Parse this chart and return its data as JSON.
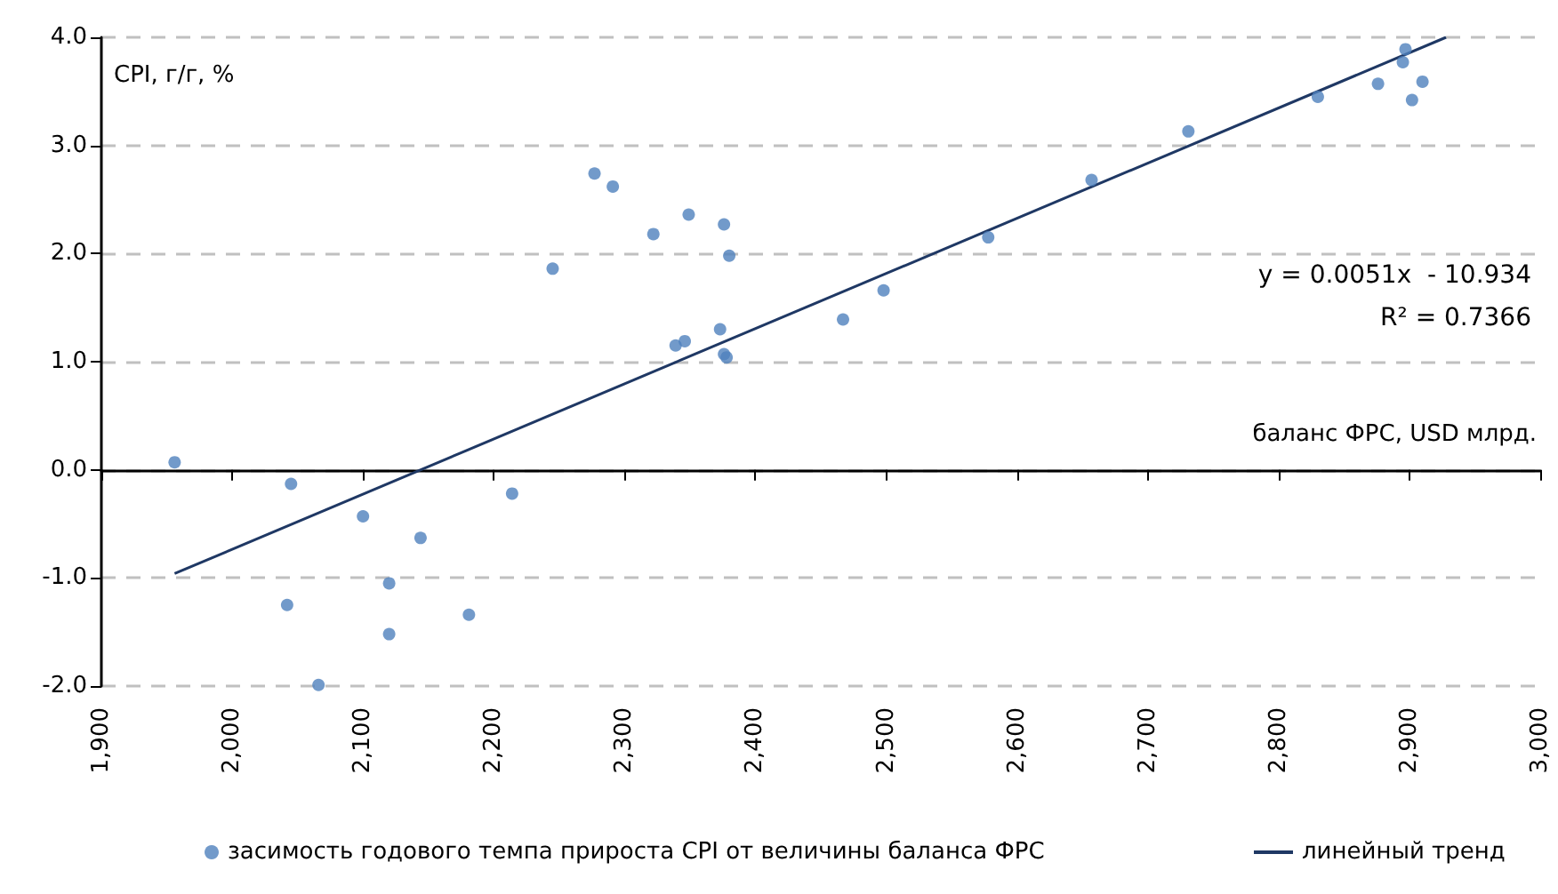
{
  "chart_data": {
    "type": "scatter",
    "xlabel": "баланс ФРС, USD млрд.",
    "ylabel": "CPI, г/г, %",
    "annotations": [
      "y = 0.0051x  - 10.934",
      "R² = 0.7366"
    ],
    "xlim": [
      1900,
      3000
    ],
    "xticks": [
      {
        "value": 1900,
        "label": "1,900"
      },
      {
        "value": 2000,
        "label": "2,000"
      },
      {
        "value": 2100,
        "label": "2,100"
      },
      {
        "value": 2200,
        "label": "2,200"
      },
      {
        "value": 2300,
        "label": "2,300"
      },
      {
        "value": 2400,
        "label": "2,400"
      },
      {
        "value": 2500,
        "label": "2,500"
      },
      {
        "value": 2600,
        "label": "2,600"
      },
      {
        "value": 2700,
        "label": "2,700"
      },
      {
        "value": 2800,
        "label": "2,800"
      },
      {
        "value": 2900,
        "label": "2,900"
      },
      {
        "value": 3000,
        "label": "3,000"
      }
    ],
    "ylim": [
      -2,
      4
    ],
    "yticks": [
      {
        "value": -2,
        "label": "-2.0"
      },
      {
        "value": -1,
        "label": "-1.0"
      },
      {
        "value": 0,
        "label": "0.0"
      },
      {
        "value": 1,
        "label": "1.0"
      },
      {
        "value": 2,
        "label": "2.0"
      },
      {
        "value": 3,
        "label": "3.0"
      },
      {
        "value": 4,
        "label": "4.0"
      }
    ],
    "grid": "y",
    "legend": "bottom",
    "marker": "circle",
    "series": [
      {
        "name": "засимость годового темпа прироста CPI от величины баланса ФРС",
        "color": "#4f81bd",
        "x": [
          1956,
          2045,
          2100,
          2144,
          2214,
          2042,
          2120,
          2120,
          2181,
          2066,
          2277,
          2291,
          2245,
          2322,
          2349,
          2376,
          2380,
          2373,
          2339,
          2346,
          2376,
          2378,
          2467,
          2498,
          2578,
          2657,
          2731,
          2830,
          2876,
          2895,
          2897,
          2910,
          2902
        ],
        "values": [
          0.07,
          -0.13,
          -0.43,
          -0.63,
          -0.22,
          -1.25,
          -1.05,
          -1.52,
          -1.34,
          -1.99,
          2.74,
          2.62,
          1.86,
          2.18,
          2.36,
          2.27,
          1.98,
          1.3,
          1.15,
          1.19,
          1.07,
          1.04,
          1.39,
          1.66,
          2.15,
          2.68,
          3.13,
          3.45,
          3.57,
          3.77,
          3.89,
          3.59,
          3.42
        ]
      },
      {
        "name": "линейный тренд",
        "type": "line",
        "color": "#1f3864",
        "marker": "none",
        "line_style": "solid",
        "x": [
          1956,
          2928
        ],
        "values": [
          -0.96,
          4.0
        ]
      }
    ]
  }
}
